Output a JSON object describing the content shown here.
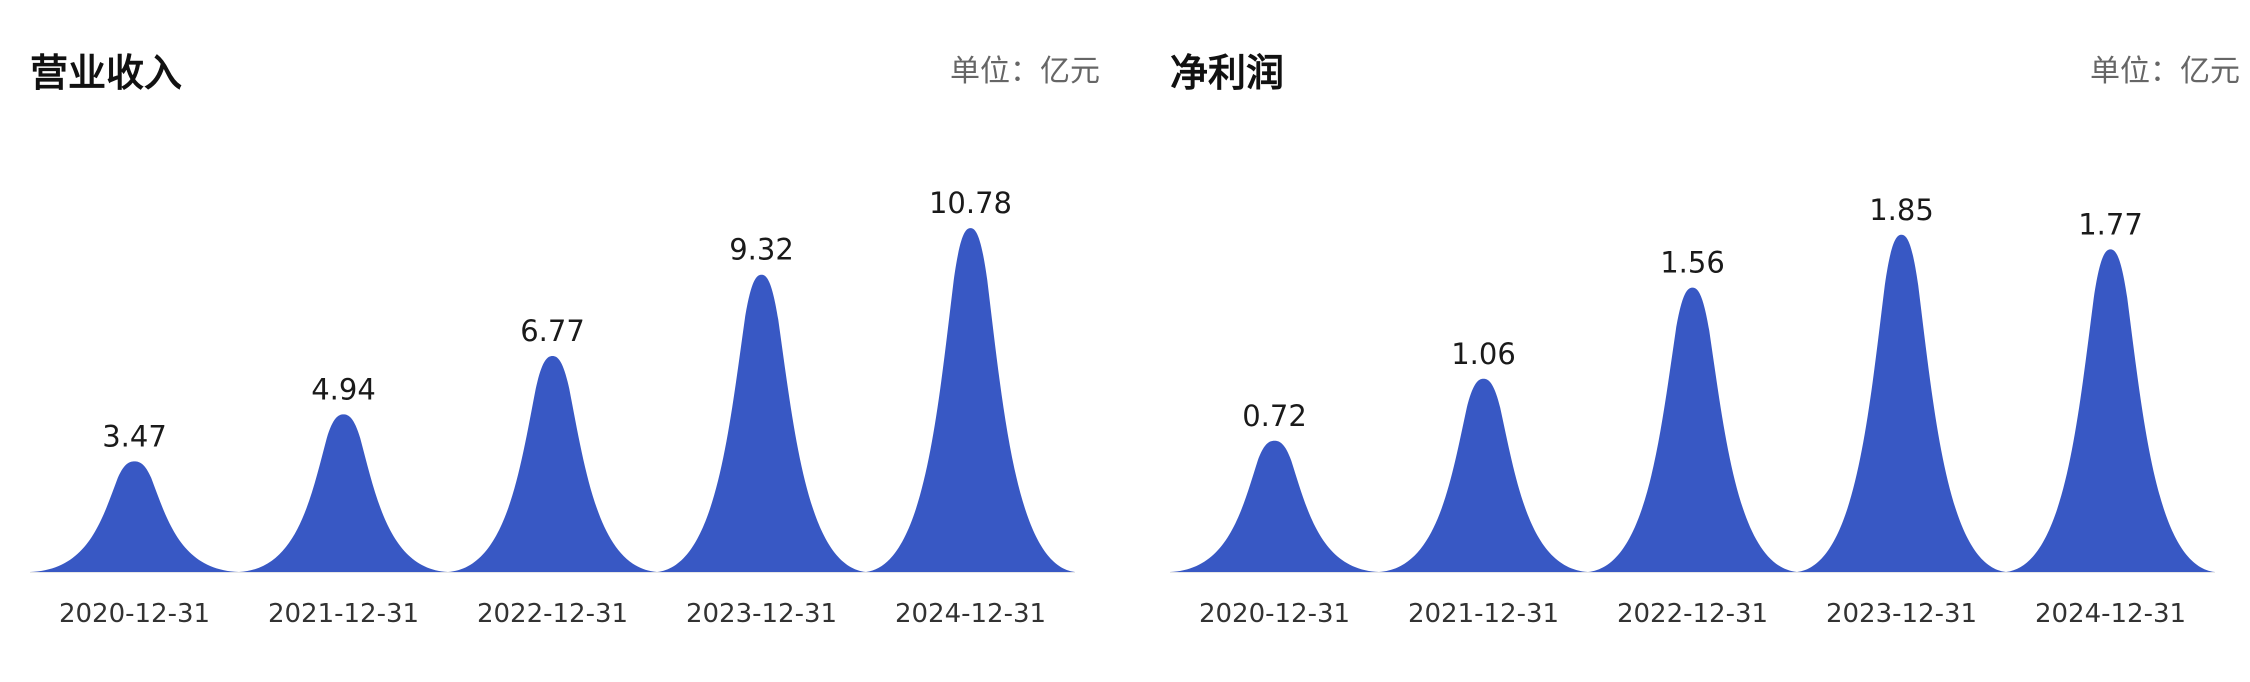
{
  "chart_data": [
    {
      "type": "bar",
      "title": "营业收入",
      "unit": "单位：亿元",
      "categories": [
        "2020-12-31",
        "2021-12-31",
        "2022-12-31",
        "2023-12-31",
        "2024-12-31"
      ],
      "values": [
        3.47,
        4.94,
        6.77,
        9.32,
        10.78
      ],
      "value_labels": [
        "3.47",
        "4.94",
        "6.77",
        "9.32",
        "10.78"
      ],
      "ylim": [
        0,
        11.6
      ],
      "grid": false,
      "color": "#3858c4"
    },
    {
      "type": "bar",
      "title": "净利润",
      "unit": "单位：亿元",
      "categories": [
        "2020-12-31",
        "2021-12-31",
        "2022-12-31",
        "2023-12-31",
        "2024-12-31"
      ],
      "values": [
        0.72,
        1.06,
        1.56,
        1.85,
        1.77
      ],
      "value_labels": [
        "0.72",
        "1.06",
        "1.56",
        "1.85",
        "1.77"
      ],
      "ylim": [
        0,
        2.03
      ],
      "grid": false,
      "color": "#3858c4"
    }
  ]
}
